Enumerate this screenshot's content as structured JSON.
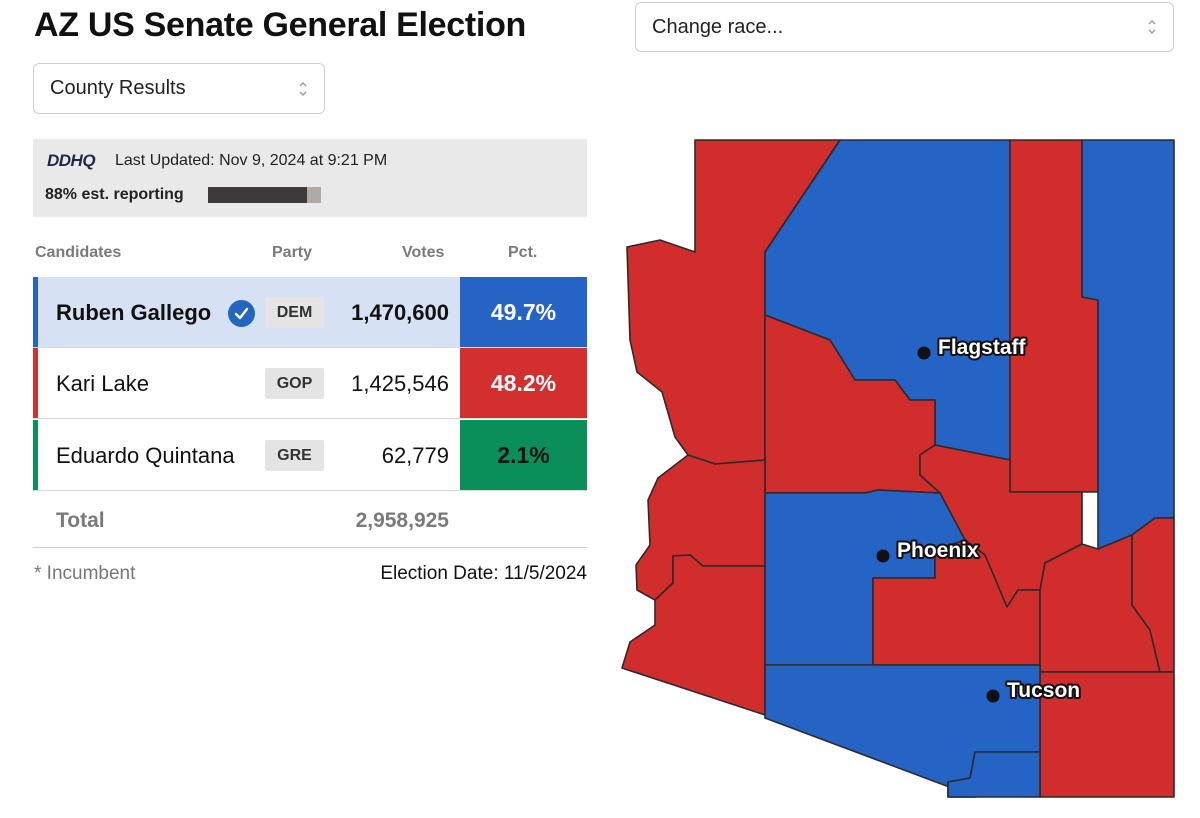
{
  "header": {
    "title": "AZ US Senate General Election"
  },
  "race_select": {
    "value": "Change race..."
  },
  "view_select": {
    "value": "County Results"
  },
  "status": {
    "logo_text": "DDHQ",
    "last_updated": "Last Updated: Nov 9, 2024 at 9:21 PM",
    "reporting_label": "88% est. reporting",
    "reporting_fraction": 0.88
  },
  "table": {
    "headers": {
      "candidates": "Candidates",
      "party": "Party",
      "votes": "Votes",
      "pct": "Pct."
    },
    "rows": [
      {
        "name": "Ruben Gallego",
        "party": "DEM",
        "votes": "1,470,600",
        "pct": "49.7%",
        "winner": true,
        "color": "#2563c4"
      },
      {
        "name": "Kari Lake",
        "party": "GOP",
        "votes": "1,425,546",
        "pct": "48.2%",
        "winner": false,
        "color": "#d32f2f"
      },
      {
        "name": "Eduardo Quintana",
        "party": "GRE",
        "votes": "62,779",
        "pct": "2.1%",
        "winner": false,
        "color": "#0a8f5b"
      }
    ],
    "total_label": "Total",
    "total_votes": "2,958,925"
  },
  "footer": {
    "incumbent_note": "* Incumbent",
    "election_date": "Election Date: 11/5/2024"
  },
  "map": {
    "colors": {
      "dem": "#2563c4",
      "gop": "#d12d2d"
    },
    "counties": [
      {
        "id": "mohave",
        "winner": "gop"
      },
      {
        "id": "coconino",
        "winner": "dem"
      },
      {
        "id": "navajo",
        "winner": "gop"
      },
      {
        "id": "apache",
        "winner": "dem"
      },
      {
        "id": "yavapai",
        "winner": "gop"
      },
      {
        "id": "gila",
        "winner": "gop"
      },
      {
        "id": "la-paz",
        "winner": "gop"
      },
      {
        "id": "yuma",
        "winner": "gop"
      },
      {
        "id": "maricopa",
        "winner": "dem"
      },
      {
        "id": "pinal",
        "winner": "gop"
      },
      {
        "id": "graham",
        "winner": "gop"
      },
      {
        "id": "greenlee",
        "winner": "gop"
      },
      {
        "id": "cochise",
        "winner": "gop"
      },
      {
        "id": "pima",
        "winner": "dem"
      },
      {
        "id": "santa-cruz",
        "winner": "dem"
      }
    ],
    "cities": [
      {
        "name": "Flagstaff"
      },
      {
        "name": "Phoenix"
      },
      {
        "name": "Tucson"
      }
    ]
  }
}
